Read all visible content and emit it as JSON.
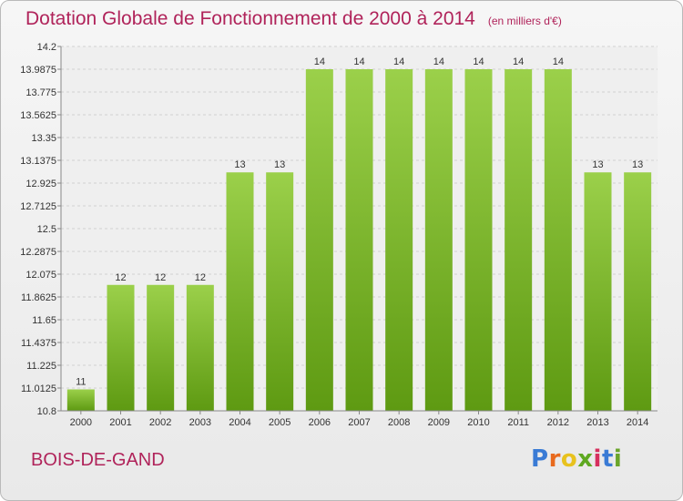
{
  "page": {
    "title": "Dotation Globale de Fonctionnement de 2000 à 2014",
    "subtitle": "(en milliers d'€)",
    "commune": "BOIS-DE-GAND",
    "logo_text": "Proxiti",
    "colors": {
      "title": "#b0235a",
      "bar_light": "#9bd04a",
      "bar_dark": "#5e9a12",
      "logo": [
        "#3a7bd5",
        "#e86a1e",
        "#e8c21e",
        "#5ea820",
        "#d6305e",
        "#3a7bd5",
        "#6aa52a"
      ]
    }
  },
  "chart_data": {
    "type": "bar",
    "title": "Dotation Globale de Fonctionnement de 2000 à 2014",
    "subtitle": "(en milliers d'€)",
    "categories": [
      "2000",
      "2001",
      "2002",
      "2003",
      "2004",
      "2005",
      "2006",
      "2007",
      "2008",
      "2009",
      "2010",
      "2011",
      "2012",
      "2013",
      "2014"
    ],
    "values": [
      11.0,
      11.975,
      11.975,
      11.975,
      13.025,
      13.025,
      13.9875,
      13.9875,
      13.9875,
      13.9875,
      13.9875,
      13.9875,
      13.9875,
      13.025,
      13.025
    ],
    "value_labels": [
      "11",
      "12",
      "12",
      "12",
      "13",
      "13",
      "14",
      "14",
      "14",
      "14",
      "14",
      "14",
      "14",
      "13",
      "13"
    ],
    "ylim": [
      10.8,
      14.2
    ],
    "yticks": [
      "10.8",
      "11.0125",
      "11.225",
      "11.4375",
      "11.65",
      "11.8625",
      "12.075",
      "12.2875",
      "12.5",
      "12.7125",
      "12.925",
      "13.1375",
      "13.35",
      "13.5625",
      "13.775",
      "13.9875",
      "14.2"
    ],
    "grid": true,
    "legend": "none"
  }
}
